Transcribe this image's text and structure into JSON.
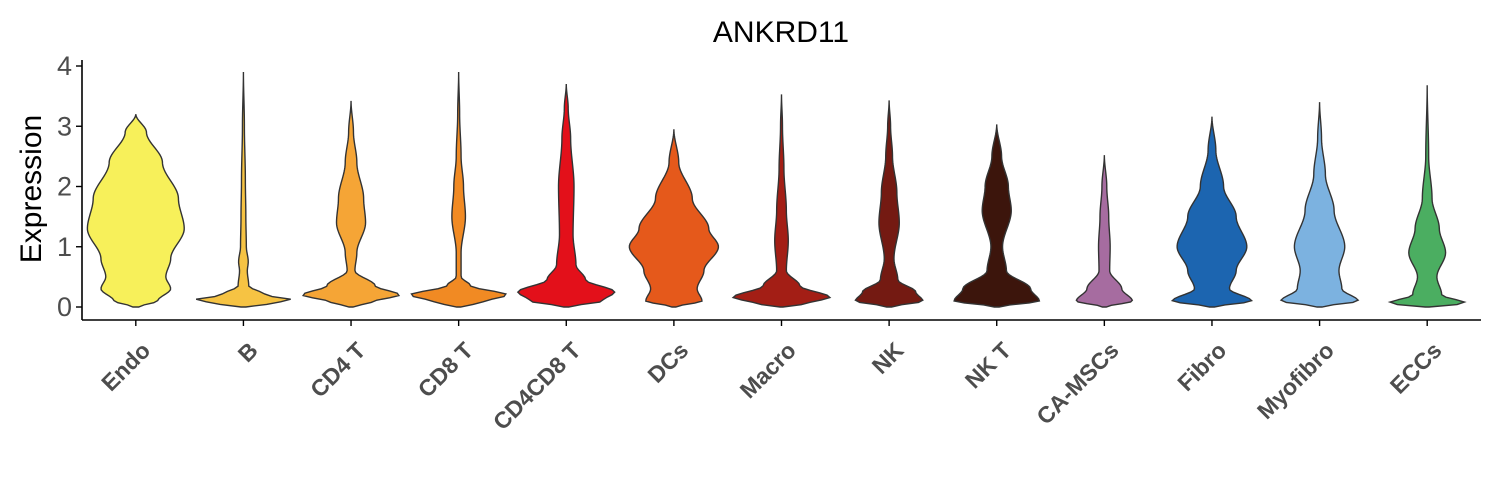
{
  "chart_data": {
    "type": "violin",
    "title": "ANKRD11",
    "xlabel": "",
    "ylabel": "Expression",
    "ylim": [
      -0.2,
      4.1
    ],
    "yticks": [
      0,
      1,
      2,
      3,
      4
    ],
    "grid": false,
    "legend": "none",
    "categories": [
      "Endo",
      "B",
      "CD4 T",
      "CD8 T",
      "CD4CD8 T",
      "DCs",
      "Macro",
      "NK",
      "NK T",
      "CA-MSCs",
      "Fibro",
      "Myofibro",
      "ECCs"
    ],
    "colors": [
      "#F7F05A",
      "#F6C343",
      "#F5A536",
      "#F18A23",
      "#E3101A",
      "#E5591B",
      "#A31E15",
      "#741A12",
      "#3C150C",
      "#A66CA0",
      "#1C65B0",
      "#7CB2E0",
      "#4BAE61"
    ],
    "max_values": [
      3.2,
      3.9,
      3.42,
      3.9,
      3.7,
      2.95,
      3.53,
      3.43,
      3.03,
      2.52,
      3.16,
      3.4,
      3.68
    ],
    "density_profiles": [
      [
        [
          0,
          0.06
        ],
        [
          0.1,
          0.45
        ],
        [
          0.3,
          0.72
        ],
        [
          0.5,
          0.62
        ],
        [
          0.8,
          0.72
        ],
        [
          1.3,
          1.0
        ],
        [
          1.8,
          0.88
        ],
        [
          2.4,
          0.55
        ],
        [
          2.9,
          0.22
        ],
        [
          3.2,
          0
        ]
      ],
      [
        [
          0,
          0.05
        ],
        [
          0.05,
          0.5
        ],
        [
          0.12,
          1.0
        ],
        [
          0.2,
          0.45
        ],
        [
          0.35,
          0.11
        ],
        [
          0.6,
          0.08
        ],
        [
          0.75,
          0.1
        ],
        [
          1.0,
          0.06
        ],
        [
          1.5,
          0.05
        ],
        [
          2.1,
          0.04
        ],
        [
          3.0,
          0.02
        ],
        [
          3.9,
          0
        ]
      ],
      [
        [
          0,
          0.04
        ],
        [
          0.08,
          0.42
        ],
        [
          0.2,
          1.0
        ],
        [
          0.35,
          0.5
        ],
        [
          0.6,
          0.08
        ],
        [
          0.9,
          0.12
        ],
        [
          1.4,
          0.3
        ],
        [
          1.8,
          0.26
        ],
        [
          2.4,
          0.12
        ],
        [
          2.9,
          0.05
        ],
        [
          3.42,
          0
        ]
      ],
      [
        [
          0,
          0.04
        ],
        [
          0.08,
          0.5
        ],
        [
          0.2,
          1.0
        ],
        [
          0.35,
          0.25
        ],
        [
          0.5,
          0.05
        ],
        [
          0.9,
          0.05
        ],
        [
          1.5,
          0.14
        ],
        [
          2.0,
          0.1
        ],
        [
          2.5,
          0.05
        ],
        [
          3.2,
          0.02
        ],
        [
          3.9,
          0
        ]
      ],
      [
        [
          0,
          0.05
        ],
        [
          0.1,
          0.75
        ],
        [
          0.25,
          1.0
        ],
        [
          0.45,
          0.4
        ],
        [
          0.7,
          0.2
        ],
        [
          1.2,
          0.14
        ],
        [
          2.0,
          0.16
        ],
        [
          2.8,
          0.09
        ],
        [
          3.3,
          0.04
        ],
        [
          3.7,
          0
        ]
      ],
      [
        [
          0,
          0.04
        ],
        [
          0.1,
          0.58
        ],
        [
          0.3,
          0.48
        ],
        [
          0.6,
          0.62
        ],
        [
          1.0,
          0.92
        ],
        [
          1.3,
          0.72
        ],
        [
          1.8,
          0.38
        ],
        [
          2.4,
          0.1
        ],
        [
          2.95,
          0
        ]
      ],
      [
        [
          0,
          0.03
        ],
        [
          0.06,
          0.55
        ],
        [
          0.16,
          1.0
        ],
        [
          0.35,
          0.38
        ],
        [
          0.6,
          0.1
        ],
        [
          1.1,
          0.14
        ],
        [
          1.6,
          0.1
        ],
        [
          2.3,
          0.05
        ],
        [
          3.0,
          0.02
        ],
        [
          3.53,
          0
        ]
      ],
      [
        [
          0,
          0.05
        ],
        [
          0.1,
          0.7
        ],
        [
          0.25,
          0.55
        ],
        [
          0.45,
          0.18
        ],
        [
          0.8,
          0.1
        ],
        [
          1.4,
          0.21
        ],
        [
          1.9,
          0.16
        ],
        [
          2.5,
          0.07
        ],
        [
          3.0,
          0.03
        ],
        [
          3.43,
          0
        ]
      ],
      [
        [
          0,
          0.05
        ],
        [
          0.1,
          0.88
        ],
        [
          0.3,
          0.7
        ],
        [
          0.6,
          0.2
        ],
        [
          1.0,
          0.12
        ],
        [
          1.6,
          0.3
        ],
        [
          2.0,
          0.24
        ],
        [
          2.5,
          0.1
        ],
        [
          3.03,
          0
        ]
      ],
      [
        [
          0,
          0.04
        ],
        [
          0.1,
          0.58
        ],
        [
          0.3,
          0.36
        ],
        [
          0.6,
          0.11
        ],
        [
          1.0,
          0.12
        ],
        [
          1.5,
          0.09
        ],
        [
          2.0,
          0.05
        ],
        [
          2.52,
          0
        ]
      ],
      [
        [
          0,
          0.05
        ],
        [
          0.1,
          0.82
        ],
        [
          0.3,
          0.36
        ],
        [
          0.6,
          0.5
        ],
        [
          1.0,
          0.72
        ],
        [
          1.5,
          0.5
        ],
        [
          2.0,
          0.24
        ],
        [
          2.6,
          0.08
        ],
        [
          3.16,
          0
        ]
      ],
      [
        [
          0,
          0.05
        ],
        [
          0.1,
          0.8
        ],
        [
          0.3,
          0.46
        ],
        [
          0.6,
          0.4
        ],
        [
          1.0,
          0.52
        ],
        [
          1.6,
          0.3
        ],
        [
          2.2,
          0.12
        ],
        [
          2.8,
          0.04
        ],
        [
          3.4,
          0
        ]
      ],
      [
        [
          0,
          0.04
        ],
        [
          0.06,
          0.8
        ],
        [
          0.2,
          0.3
        ],
        [
          0.5,
          0.2
        ],
        [
          0.9,
          0.38
        ],
        [
          1.3,
          0.25
        ],
        [
          1.8,
          0.1
        ],
        [
          2.5,
          0.03
        ],
        [
          3.68,
          0
        ]
      ]
    ]
  }
}
